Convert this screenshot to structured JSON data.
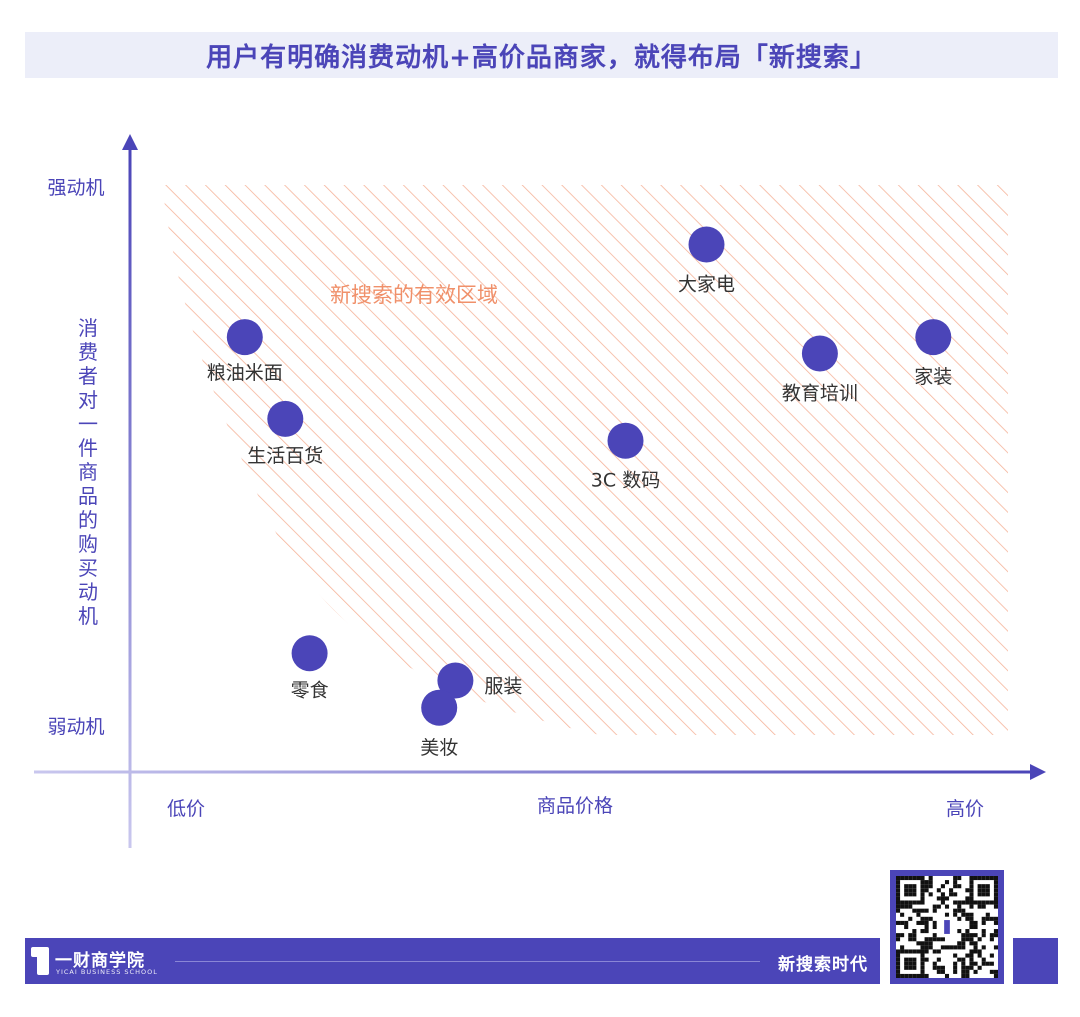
{
  "header": {
    "title": "用户有明确消费动机+高价品商家，就得布局「新搜索」"
  },
  "chart_data": {
    "type": "scatter",
    "title": "用户有明确消费动机+高价品商家，就得布局「新搜索」",
    "xlabel": "商品价格",
    "ylabel": "消费者对一件商品的购买动机",
    "x_tick_labels": {
      "low": "低价",
      "high": "高价"
    },
    "y_tick_labels": {
      "high": "强动机",
      "low": "弱动机"
    },
    "xlim": [
      0,
      100
    ],
    "ylim": [
      0,
      100
    ],
    "region_label": "新搜索的有效区域",
    "points": [
      {
        "label": "大家电",
        "x": 65,
        "y": 90
      },
      {
        "label": "粮油米面",
        "x": 8,
        "y": 73
      },
      {
        "label": "家装",
        "x": 93,
        "y": 73
      },
      {
        "label": "教育培训",
        "x": 79,
        "y": 70
      },
      {
        "label": "生活百货",
        "x": 13,
        "y": 58
      },
      {
        "label": "3C 数码",
        "x": 55,
        "y": 54
      },
      {
        "label": "零食",
        "x": 16,
        "y": 15
      },
      {
        "label": "服装",
        "x": 34,
        "y": 10
      },
      {
        "label": "美妆",
        "x": 32,
        "y": 5
      }
    ],
    "colors": {
      "accent": "#4b45b8",
      "point": "#4b45b8",
      "region": "#f5b49a",
      "region_label": "#f0906a"
    }
  },
  "footer": {
    "brand": "一财商学院",
    "brand_sub": "YICAI BUSINESS SCHOOL",
    "right_text": "新搜索时代"
  }
}
